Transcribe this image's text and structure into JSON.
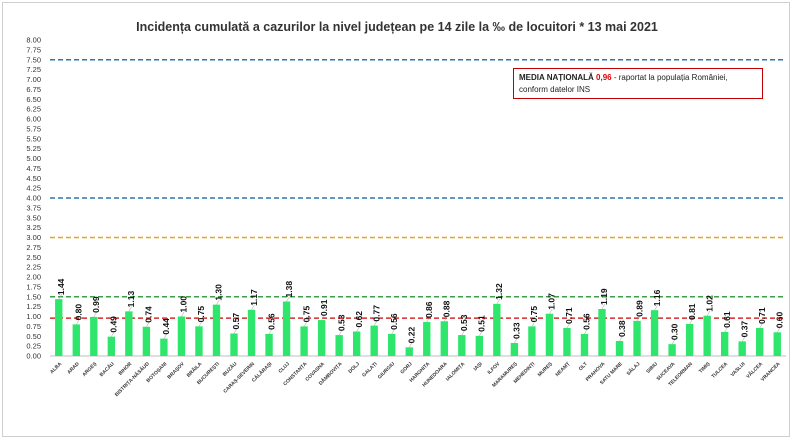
{
  "chart_data": {
    "type": "bar",
    "title": "Incidența cumulată a cazurilor la nivel județean pe 14 zile la ‰ de locuitori *  13 mai 2021",
    "xlabel": "",
    "ylabel": "",
    "ylim": [
      0,
      8
    ],
    "ytick_step": 0.25,
    "bar_color": "#2ee66b",
    "grid": false,
    "categories": [
      "ALBA",
      "ARAD",
      "ARGEȘ",
      "BACĂU",
      "BIHOR",
      "BISTRIȚA-NĂSĂUD",
      "BOTOȘANI",
      "BRAȘOV",
      "BRĂILA",
      "BUCUREȘTI",
      "BUZĂU",
      "CARAȘ-SEVERIN",
      "CĂLĂRAȘI",
      "CLUJ",
      "CONSTANȚA",
      "COVASNA",
      "DÂMBOVIȚA",
      "DOLJ",
      "GALAȚI",
      "GIURGIU",
      "GORJ",
      "HARGHITA",
      "HUNEDOARA",
      "IALOMIȚA",
      "IAȘI",
      "ILFOV",
      "MARAMUREȘ",
      "MEHEDINȚI",
      "MUREȘ",
      "NEAMȚ",
      "OLT",
      "PRAHOVA",
      "SATU MARE",
      "SĂLAJ",
      "SIBIU",
      "SUCEAVA",
      "TELEORMAN",
      "TIMIȘ",
      "TULCEA",
      "VASLUI",
      "VÂLCEA",
      "VRANCEA"
    ],
    "values": [
      1.44,
      0.8,
      0.99,
      0.49,
      1.13,
      0.74,
      0.44,
      1.0,
      0.75,
      1.3,
      0.57,
      1.17,
      0.56,
      1.38,
      0.75,
      0.91,
      0.53,
      0.62,
      0.77,
      0.56,
      0.22,
      0.86,
      0.88,
      0.53,
      0.51,
      1.32,
      0.33,
      0.75,
      1.07,
      0.71,
      0.56,
      1.19,
      0.38,
      0.89,
      1.16,
      0.3,
      0.81,
      1.02,
      0.61,
      0.37,
      0.71,
      0.6
    ],
    "value_labels": [
      "1.44",
      "0.80",
      "0.99",
      "0.49",
      "1.13",
      "0.74",
      "0.44",
      "1.00",
      "0.75",
      "1.30",
      "0.57",
      "1.17",
      "0.56",
      "1.38",
      "0.75",
      "0.91",
      "0.53",
      "0.62",
      "0.77",
      "0.56",
      "0.22",
      "0.86",
      "0.88",
      "0.53",
      "0.51",
      "1.32",
      "0.33",
      "0.75",
      "1.07",
      "0.71",
      "0.56",
      "1.19",
      "0.38",
      "0.89",
      "1.16",
      "0.30",
      "0.81",
      "1.02",
      "0.61",
      "0.37",
      "0.71",
      "0.60"
    ],
    "reference_lines": [
      {
        "value": 7.5,
        "color": "#2e75b6"
      },
      {
        "value": 4.0,
        "color": "#2e75b6"
      },
      {
        "value": 3.0,
        "color": "#e6a817"
      },
      {
        "value": 1.5,
        "color": "#3aa04a"
      },
      {
        "value": 0.96,
        "color": "#d42a2a"
      }
    ]
  },
  "note": {
    "heading": "MEDIA NAȚIONALĂ",
    "value": "0,96",
    "text_after": " - raportat la populația României,",
    "line2": "conform datelor INS"
  }
}
